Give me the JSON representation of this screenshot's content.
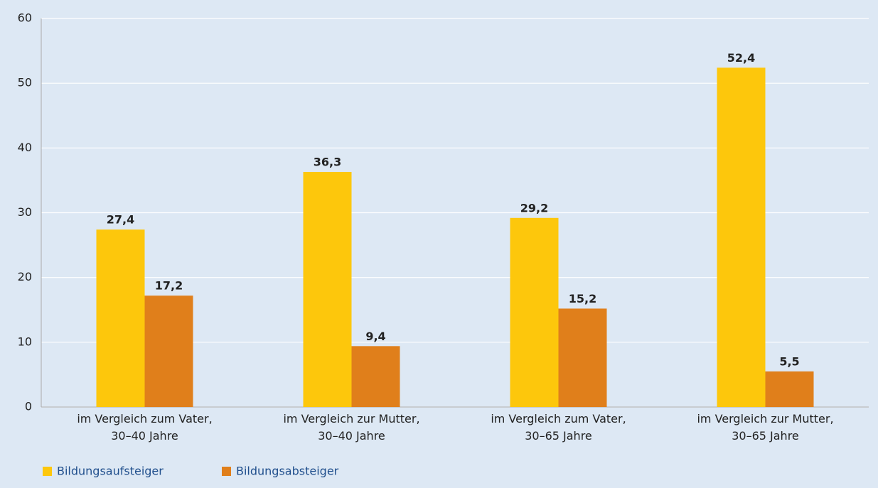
{
  "chart_data": {
    "type": "bar",
    "categories": [
      "im Vergleich zum Vater,\n30–40 Jahre",
      "im Vergleich zur Mutter,\n30–40 Jahre",
      "im Vergleich zum Vater,\n30–65 Jahre",
      "im Vergleich zur Mutter,\n30–65 Jahre"
    ],
    "series": [
      {
        "name": "Bildungsaufsteiger",
        "color": "#fdc70c",
        "values": [
          27.4,
          36.3,
          29.2,
          52.4
        ],
        "value_labels": [
          "27,4",
          "36,3",
          "29,2",
          "52,4"
        ]
      },
      {
        "name": "Bildungsabsteiger",
        "color": "#e07f1b",
        "values": [
          17.2,
          9.4,
          15.2,
          5.5
        ],
        "value_labels": [
          "17,2",
          "9,4",
          "15,2",
          "5,5"
        ]
      }
    ],
    "ylim": [
      0,
      60
    ],
    "yticks": [
      0,
      10,
      20,
      30,
      40,
      50,
      60
    ],
    "grid": true,
    "legend": "bottom-left"
  }
}
